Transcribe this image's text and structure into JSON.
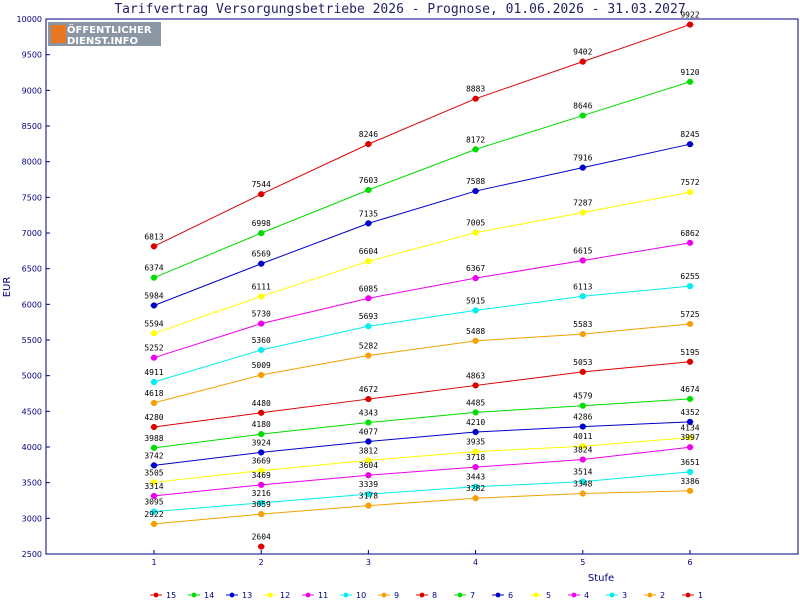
{
  "chart_data": {
    "type": "line",
    "title": "Tarifvertrag Versorgungsbetriebe 2026 - Prognose, 01.06.2026 - 31.03.2027",
    "xlabel": "Stufe",
    "ylabel": "EUR",
    "x": [
      1,
      2,
      3,
      4,
      5,
      6
    ],
    "x_ticks": [
      "1",
      "2",
      "3",
      "4",
      "5",
      "6"
    ],
    "ylim": [
      2500,
      10000
    ],
    "y_ticks": [
      "2500",
      "3000",
      "3500",
      "4000",
      "4500",
      "5000",
      "5500",
      "6000",
      "6500",
      "7000",
      "7500",
      "8000",
      "8500",
      "9000",
      "9500",
      "10000"
    ],
    "grid": false,
    "legend_position": "bottom",
    "series": [
      {
        "name": "15",
        "color": "#dd0000",
        "values": [
          6813,
          7544,
          8246,
          8883,
          9402,
          9922
        ]
      },
      {
        "name": "14",
        "color": "#00dd00",
        "values": [
          6374,
          6998,
          7603,
          8172,
          8646,
          9120
        ]
      },
      {
        "name": "13",
        "color": "#0000cc",
        "values": [
          5984,
          6569,
          7135,
          7588,
          7916,
          8245
        ]
      },
      {
        "name": "12",
        "color": "#ffff00",
        "values": [
          5594,
          6111,
          6604,
          7005,
          7287,
          7572
        ]
      },
      {
        "name": "11",
        "color": "#ee00ee",
        "values": [
          5252,
          5730,
          6085,
          6367,
          6615,
          6862
        ]
      },
      {
        "name": "10",
        "color": "#00eeee",
        "values": [
          4911,
          5360,
          5693,
          5915,
          6113,
          6255
        ]
      },
      {
        "name": "9",
        "color": "#f5a000",
        "values": [
          4618,
          5009,
          5282,
          5488,
          5583,
          5725
        ]
      },
      {
        "name": "8",
        "color": "#dd0000",
        "values": [
          4280,
          4480,
          4672,
          4863,
          5053,
          5195
        ]
      },
      {
        "name": "7",
        "color": "#00dd00",
        "values": [
          3988,
          4180,
          4343,
          4485,
          4579,
          4674
        ]
      },
      {
        "name": "6",
        "color": "#0000cc",
        "values": [
          3742,
          3924,
          4077,
          4210,
          4286,
          4352
        ]
      },
      {
        "name": "5",
        "color": "#ffff00",
        "values": [
          3505,
          3669,
          3812,
          3935,
          4011,
          4134
        ]
      },
      {
        "name": "4",
        "color": "#ee00ee",
        "values": [
          3314,
          3469,
          3604,
          3718,
          3824,
          3997
        ]
      },
      {
        "name": "3",
        "color": "#00eeee",
        "values": [
          3095,
          3216,
          3339,
          3443,
          3514,
          3651
        ]
      },
      {
        "name": "2",
        "color": "#f5a000",
        "values": [
          2922,
          3059,
          3178,
          3282,
          3348,
          3386
        ]
      },
      {
        "name": "1",
        "color": "#dd0000",
        "values": [
          null,
          2604,
          null,
          null,
          null,
          null
        ]
      }
    ]
  },
  "logo": {
    "line1": "ÖFFENTLICHER",
    "line2": "DIENST.INFO",
    "box_color": "#e87722",
    "bg_color": "#8899aa"
  },
  "colors": {
    "frame": "#000080",
    "background": "#ffffff"
  }
}
